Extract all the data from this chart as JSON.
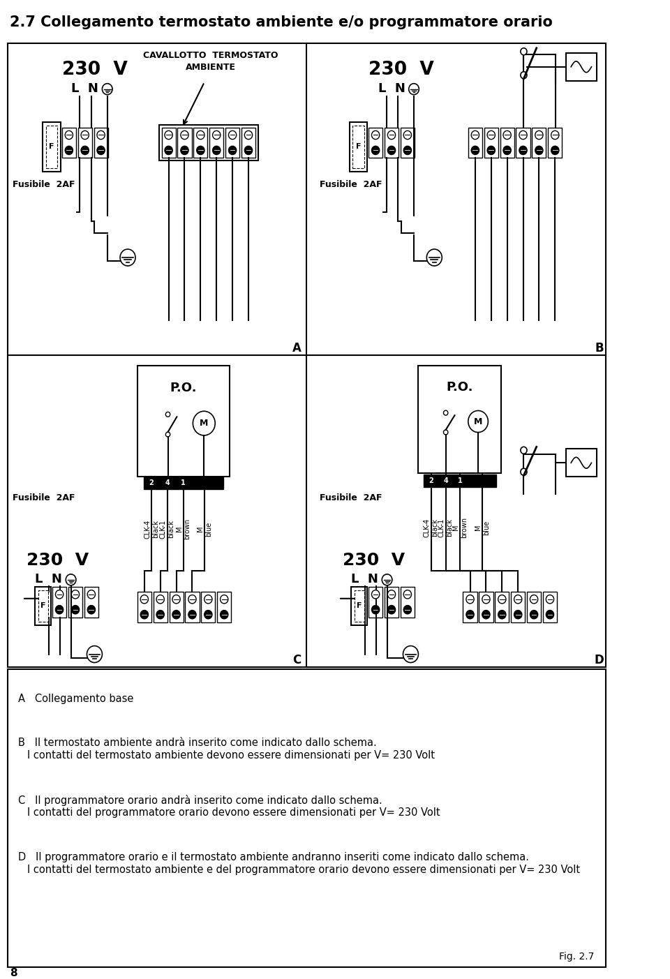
{
  "title": "2.7 Collegamento termostato ambiente e/o programmatore orario",
  "bg_color": "#ffffff",
  "text_color": "#000000",
  "legend_A": "A   Collegamento base",
  "legend_B_line1": "B   Il termostato ambiente andrà inserito come indicato dallo schema.",
  "legend_B_line2": "     I contatti del termostato ambiente devono essere dimensionati per V= 230 Volt",
  "legend_C_line1": "C   Il programmatore orario andrà inserito come indicato dallo schema.",
  "legend_C_line2": "     I contatti del programmatore orario devono essere dimensionati per V= 230 Volt",
  "legend_D_line1": "D   Il programmatore orario e il termostato ambiente andranno inseriti come indicato dallo schema.",
  "legend_D_line2": "     I contatti del termostato ambiente e del programmatore orario devono essere dimensionati per V= 230 Volt",
  "fig_label": "Fig. 2.7",
  "page_num": "8"
}
